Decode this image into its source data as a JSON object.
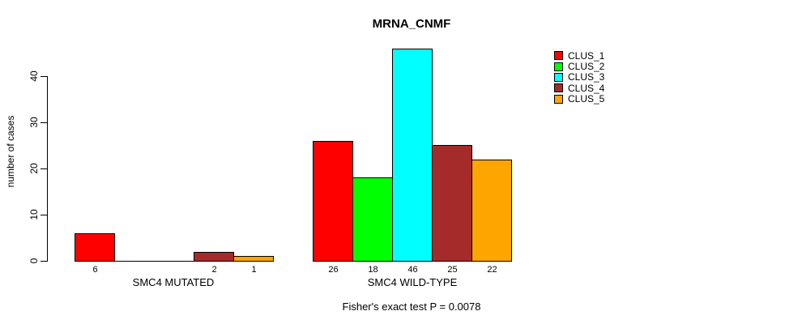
{
  "chart_data": {
    "type": "bar",
    "title": "MRNA_CNMF",
    "ylabel": "number of cases",
    "xlabel": "",
    "yticks": [
      0,
      10,
      20,
      30,
      40
    ],
    "ylim": [
      0,
      46
    ],
    "grid": false,
    "groups": [
      "SMC4 MUTATED",
      "SMC4 WILD-TYPE"
    ],
    "series": [
      {
        "name": "CLUS_1",
        "color": "#FF0000",
        "values": [
          6,
          26
        ]
      },
      {
        "name": "CLUS_2",
        "color": "#00FF00",
        "values": [
          0,
          18
        ]
      },
      {
        "name": "CLUS_3",
        "color": "#00FFFF",
        "values": [
          0,
          46
        ]
      },
      {
        "name": "CLUS_4",
        "color": "#A52A2A",
        "values": [
          2,
          25
        ]
      },
      {
        "name": "CLUS_5",
        "color": "#FFA500",
        "values": [
          1,
          22
        ]
      }
    ],
    "legend_position": "top-right",
    "bar_value_labels_shown": true,
    "zero_value_labels_hidden": true,
    "annotation": "Fisher's exact test P = 0.0078",
    "axis_color": "#000000",
    "bar_border_color": "#000000"
  }
}
